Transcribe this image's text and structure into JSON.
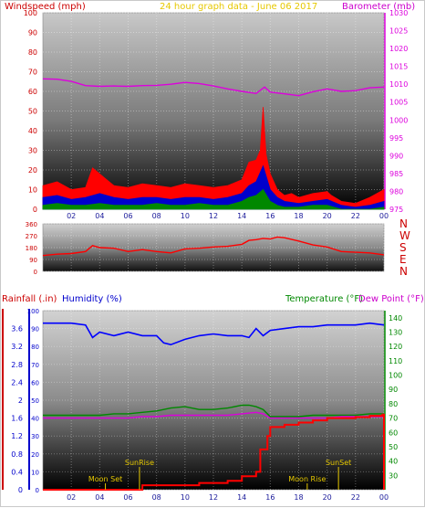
{
  "header": {
    "wind_title": "Windspeed (mph)",
    "date_title": "24 hour graph data - June 06 2017",
    "baro_title": "Barometer (mb)"
  },
  "mid": {
    "compass": [
      "N",
      "W",
      "S",
      "E",
      "N"
    ]
  },
  "bottom": {
    "rain_title": "Rainfall (.in)",
    "hum_title": "Humidity (%)",
    "temp_title": "Temperature (°F)",
    "dew_title": "Dew Point (°F)",
    "events": {
      "sunrise": "SunRise",
      "sunset": "SunSet",
      "moonset": "Moon Set",
      "moonrise": "Moon Rise"
    }
  },
  "colors": {
    "wind_gust": "#ff0000",
    "wind_avg": "#0000cc",
    "wind_low": "#008800",
    "barometer": "#dd00dd",
    "direction": "#ff0000",
    "humidity": "#0000ff",
    "temperature": "#008800",
    "dewpoint": "#dd00dd",
    "rain": "#ff0000",
    "title_wind": "#cc0000",
    "title_date": "#e6c800",
    "title_baro": "#cc00cc",
    "title_hum": "#0000cc",
    "title_temp": "#008800"
  },
  "chart_data": [
    {
      "type": "line",
      "name": "wind",
      "x_label_hours": [
        "02",
        "04",
        "06",
        "08",
        "10",
        "12",
        "14",
        "16",
        "18",
        "20",
        "22",
        "00"
      ],
      "y_left": {
        "ticks": [
          0,
          10,
          20,
          30,
          40,
          50,
          60,
          70,
          80,
          90,
          100
        ],
        "range": [
          0,
          100
        ]
      },
      "y_right": {
        "ticks": [
          975,
          980,
          985,
          990,
          995,
          1000,
          1005,
          1010,
          1015,
          1020,
          1025,
          1030
        ],
        "range": [
          975,
          1030
        ]
      },
      "series": [
        {
          "name": "Windspeed gust",
          "hours": [
            0,
            1,
            2,
            3,
            3.5,
            4,
            4.5,
            5,
            6,
            7,
            8,
            9,
            10,
            11,
            12,
            13,
            14,
            14.5,
            15,
            15.3,
            15.5,
            15.7,
            16,
            16.5,
            17,
            17.5,
            18,
            19,
            20,
            20.3,
            21,
            22,
            23,
            24
          ],
          "values": [
            12,
            14,
            10,
            11,
            21,
            18,
            15,
            12,
            11,
            13,
            12,
            11,
            13,
            12,
            11,
            12,
            15,
            24,
            25,
            30,
            52,
            28,
            18,
            10,
            7,
            8,
            6,
            8,
            9,
            7,
            4,
            3,
            6,
            10
          ]
        },
        {
          "name": "Windspeed average",
          "hours": [
            0,
            1,
            2,
            3,
            4,
            5,
            6,
            7,
            8,
            9,
            10,
            11,
            12,
            13,
            14,
            14.5,
            15,
            15.5,
            16,
            16.5,
            17,
            18,
            19,
            20,
            21,
            22,
            23,
            24
          ],
          "values": [
            6,
            7,
            5,
            6,
            8,
            6,
            5,
            6,
            6,
            5,
            6,
            6,
            5,
            6,
            8,
            12,
            14,
            22,
            10,
            6,
            4,
            3,
            4,
            5,
            2,
            1,
            2,
            4
          ]
        },
        {
          "name": "Windspeed low",
          "hours": [
            0,
            1,
            2,
            3,
            4,
            5,
            6,
            7,
            8,
            9,
            10,
            11,
            12,
            13,
            14,
            14.5,
            15,
            15.5,
            16,
            16.5,
            17,
            18,
            19,
            20,
            21,
            22,
            23,
            24
          ],
          "values": [
            2,
            3,
            2,
            2,
            3,
            2,
            2,
            2,
            3,
            2,
            2,
            3,
            2,
            2,
            4,
            6,
            7,
            10,
            4,
            2,
            1,
            1,
            2,
            2,
            0,
            0,
            0,
            1
          ]
        },
        {
          "name": "Barometer",
          "axis": "right",
          "hours": [
            0,
            1,
            2,
            3,
            4,
            5,
            6,
            7,
            8,
            9,
            10,
            11,
            12,
            13,
            14,
            15,
            15.6,
            16,
            17,
            18,
            19,
            20,
            21,
            22,
            23,
            24
          ],
          "values": [
            1011.5,
            1011.4,
            1010.8,
            1009.6,
            1009.4,
            1009.5,
            1009.4,
            1009.6,
            1009.7,
            1010.0,
            1010.5,
            1010.2,
            1009.5,
            1008.7,
            1008.0,
            1007.4,
            1009.2,
            1007.8,
            1007.3,
            1006.8,
            1007.9,
            1008.7,
            1008.0,
            1008.2,
            1009.0,
            1009.2
          ]
        }
      ]
    },
    {
      "type": "line",
      "name": "wind-direction",
      "y_ticks": [
        0,
        90,
        180,
        270,
        360
      ],
      "range": [
        0,
        360
      ],
      "series": [
        {
          "name": "Wind direction",
          "hours": [
            0,
            1,
            2,
            3,
            3.5,
            4,
            5,
            6,
            7,
            8,
            9,
            10,
            11,
            12,
            13,
            14,
            14.5,
            15,
            15.5,
            16,
            16.5,
            17,
            18,
            19,
            20,
            21,
            22,
            23,
            24
          ],
          "values": [
            120,
            130,
            135,
            150,
            195,
            180,
            175,
            150,
            165,
            150,
            140,
            170,
            175,
            185,
            190,
            205,
            235,
            240,
            250,
            245,
            260,
            255,
            230,
            200,
            185,
            150,
            145,
            140,
            125
          ]
        }
      ]
    },
    {
      "type": "line",
      "name": "rain-humidity-temperature",
      "y_rain": {
        "ticks": [
          0,
          0.4,
          0.8,
          1.2,
          1.6,
          2,
          2.4,
          2.8,
          3.2,
          3.6
        ],
        "range": [
          0,
          4
        ]
      },
      "y_hum": {
        "ticks": [
          0,
          10,
          20,
          30,
          40,
          50,
          60,
          70,
          80,
          90,
          100
        ],
        "range": [
          0,
          100
        ]
      },
      "y_temp": {
        "ticks": [
          30,
          40,
          50,
          60,
          70,
          80,
          90,
          100,
          110,
          120,
          130,
          140
        ],
        "range": [
          20,
          145
        ]
      },
      "series": [
        {
          "name": "Humidity",
          "axis": "hum",
          "hours": [
            0,
            1,
            2,
            3,
            3.5,
            4,
            5,
            6,
            7,
            8,
            8.5,
            9,
            10,
            11,
            12,
            13,
            14,
            14.5,
            15,
            15.5,
            16,
            17,
            18,
            19,
            20,
            21,
            22,
            23,
            24
          ],
          "values": [
            93,
            93,
            93,
            92,
            85,
            88,
            86,
            88,
            86,
            86,
            82,
            81,
            84,
            86,
            87,
            86,
            86,
            85,
            90,
            86,
            89,
            90,
            91,
            91,
            92,
            92,
            92,
            93,
            92
          ]
        },
        {
          "name": "Temperature",
          "axis": "temp",
          "hours": [
            0,
            1,
            2,
            3,
            4,
            5,
            6,
            7,
            8,
            9,
            10,
            11,
            12,
            13,
            14,
            14.5,
            15,
            15.5,
            16,
            17,
            18,
            19,
            20,
            21,
            22,
            23,
            24
          ],
          "values": [
            72,
            72,
            72,
            72,
            72,
            73,
            73,
            74,
            75,
            77,
            78,
            76,
            76,
            77,
            79,
            79,
            78,
            76,
            71,
            71,
            71,
            72,
            72,
            72,
            72,
            73,
            73
          ]
        },
        {
          "name": "Dew Point",
          "axis": "temp",
          "hours": [
            0,
            1,
            2,
            3,
            4,
            5,
            6,
            7,
            8,
            9,
            10,
            11,
            12,
            13,
            14,
            15,
            15.5,
            16,
            17,
            18,
            19,
            20,
            21,
            22,
            23,
            24
          ],
          "values": [
            70,
            70,
            70,
            70,
            70,
            70,
            70,
            71,
            71,
            72,
            72,
            72,
            72,
            72,
            73,
            74,
            73,
            70,
            70,
            70,
            70,
            70,
            71,
            71,
            71,
            71
          ]
        },
        {
          "name": "Rainfall",
          "axis": "rain",
          "hours": [
            0,
            1,
            2,
            3,
            4,
            5,
            6,
            6.8,
            7,
            8,
            9,
            10,
            11,
            12,
            13,
            14,
            15,
            15.3,
            15.8,
            16,
            17,
            18,
            19,
            20,
            21,
            22,
            23,
            23.9,
            24
          ],
          "values": [
            0,
            0,
            0,
            0,
            0,
            0,
            0,
            0,
            0.1,
            0.1,
            0.1,
            0.1,
            0.15,
            0.15,
            0.2,
            0.3,
            0.4,
            0.9,
            1.2,
            1.4,
            1.45,
            1.5,
            1.55,
            1.6,
            1.6,
            1.62,
            1.65,
            1.68,
            0
          ]
        }
      ],
      "markers": [
        {
          "label": "SunRise",
          "hour": 6.8
        },
        {
          "label": "SunSet",
          "hour": 20.8
        },
        {
          "label": "Moon Set",
          "hour": 4.4
        },
        {
          "label": "Moon Rise",
          "hour": 18.6
        }
      ]
    }
  ]
}
